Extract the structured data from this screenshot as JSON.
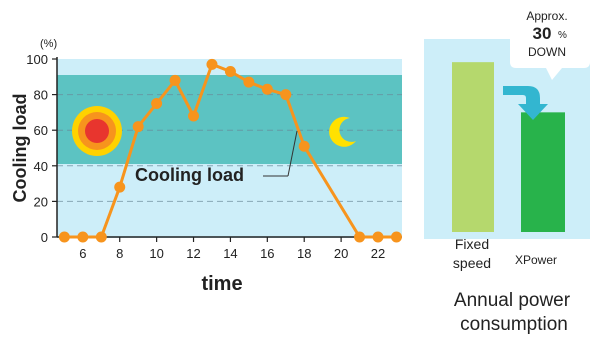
{
  "chart_data": [
    {
      "type": "line",
      "ylabel": "Cooling load",
      "yunit": "(%)",
      "xlabel": "time",
      "ylim": [
        0,
        100
      ],
      "yticks": [
        0,
        20,
        40,
        60,
        80,
        100
      ],
      "xticks": [
        6,
        8,
        10,
        12,
        14,
        16,
        18,
        20,
        22
      ],
      "grid": "dashed horizontal",
      "series": [
        {
          "name": "Cooling load",
          "x": [
            5,
            6,
            7,
            8,
            9,
            10,
            11,
            12,
            13,
            14,
            15,
            16,
            17,
            18,
            21,
            22,
            23
          ],
          "y": [
            0,
            0,
            0,
            28,
            62,
            75,
            88,
            68,
            97,
            93,
            87,
            83,
            80,
            51,
            0,
            0,
            0
          ]
        }
      ],
      "annotation": "Cooling load",
      "icons": [
        "sun-icon",
        "moon-icon"
      ],
      "colors": {
        "line": "#f7941d",
        "band": "#5cc3c2",
        "background": "#cdeef9",
        "sun": "#e8352e",
        "moon": "#ffe100"
      }
    },
    {
      "type": "bar",
      "categories": [
        "Fixed\nspeed",
        "XPower"
      ],
      "category_lines": [
        [
          "Fixed",
          "speed"
        ],
        [
          "XPower"
        ]
      ],
      "values": [
        88,
        62
      ],
      "title_lines": [
        "Annual power",
        "consumption"
      ],
      "callout": {
        "line1": "Approx.",
        "value": "30",
        "unit": "%",
        "line3": "DOWN"
      },
      "colors": {
        "fixed": "#b5d86d",
        "xpower": "#28b34b",
        "arrow": "#33b6d0",
        "background": "#cdeef9"
      }
    }
  ]
}
